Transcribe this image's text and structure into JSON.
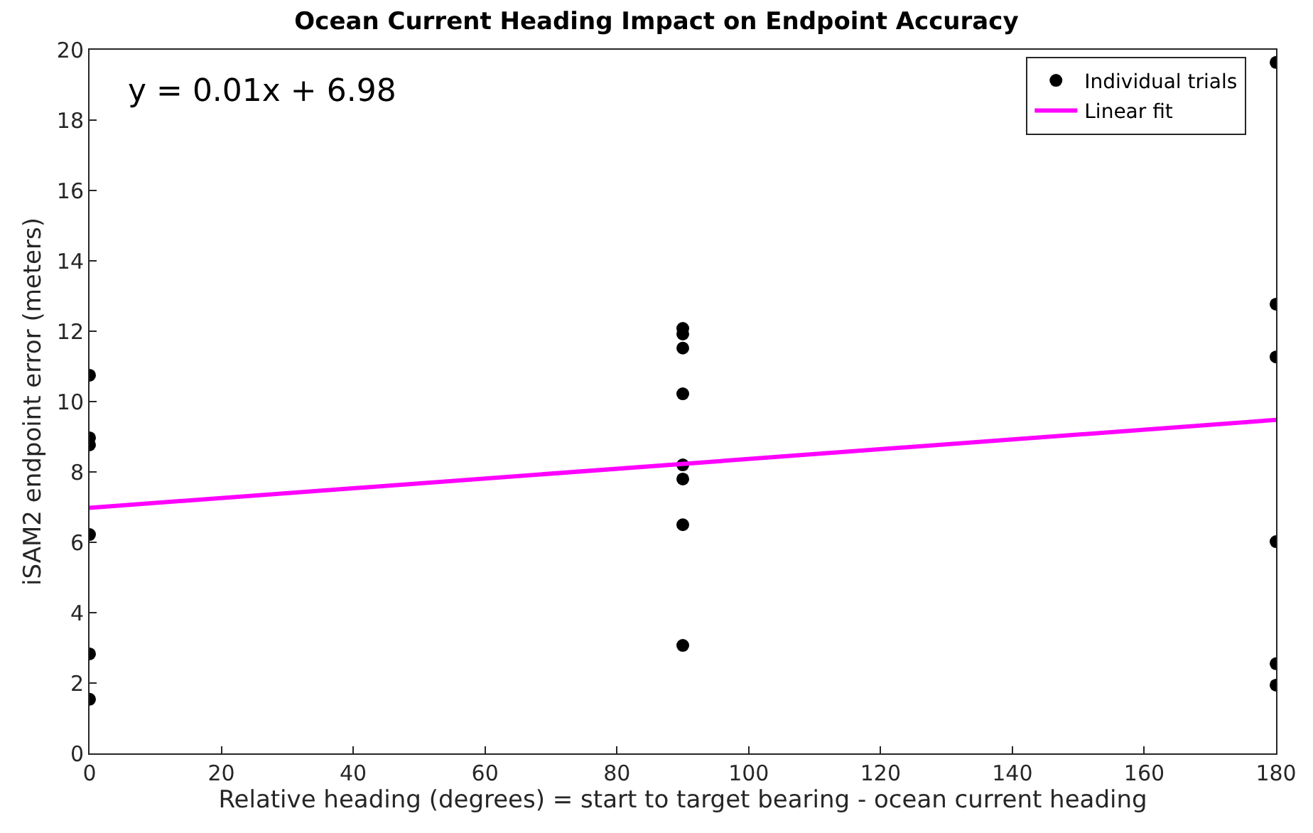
{
  "chart_data": {
    "type": "scatter",
    "title": "Ocean Current Heading Impact on Endpoint Accuracy",
    "xlabel": "Relative heading (degrees) = start to target bearing - ocean current heading",
    "ylabel": "iSAM2 endpoint error (meters)",
    "annotations": [
      "y = 0.01x + 6.98"
    ],
    "xlim": [
      0,
      180
    ],
    "xticks": [
      0,
      20,
      40,
      60,
      80,
      100,
      120,
      140,
      160,
      180
    ],
    "ylim": [
      0,
      20
    ],
    "yticks": [
      0,
      2,
      4,
      6,
      8,
      10,
      12,
      14,
      16,
      18,
      20
    ],
    "series": [
      {
        "name": "Individual trials",
        "color": "#000000",
        "marker": "circle",
        "x": [
          0,
          0,
          0,
          0,
          0,
          0,
          90,
          90,
          90,
          90,
          90,
          90,
          90,
          90,
          180,
          180,
          180,
          180,
          180,
          180
        ],
        "values": [
          10.75,
          8.97,
          8.77,
          6.22,
          2.83,
          1.54,
          12.08,
          11.92,
          11.52,
          10.22,
          8.2,
          7.8,
          6.5,
          3.07,
          19.64,
          12.77,
          11.27,
          6.02,
          2.55,
          1.94
        ]
      },
      {
        "name": "Linear fit",
        "type": "line",
        "color": "#ff00ff",
        "x": [
          0,
          180
        ],
        "values": [
          6.98,
          9.48
        ]
      }
    ],
    "legend": "top right"
  }
}
